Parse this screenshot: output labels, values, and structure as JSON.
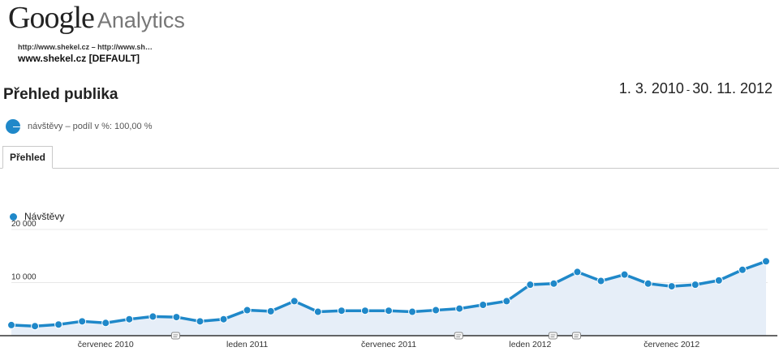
{
  "header": {
    "logo_google": "Google",
    "logo_product": "Analytics",
    "profile_url": "http://www.shekel.cz – http://www.sh…",
    "profile_name": "www.shekel.cz [DEFAULT]"
  },
  "report": {
    "title": "Přehled publika",
    "date_start": "1. 3. 2010",
    "date_sep": "-",
    "date_end": "30. 11. 2012",
    "segment_label": "návštěvy – podíl v %: 100,00 %"
  },
  "tabs": [
    {
      "label": "Přehled"
    }
  ],
  "colors": {
    "series": "#1f88c9",
    "fill": "#e6eef8"
  },
  "chart_data": {
    "type": "area",
    "legend": "Návštěvy",
    "y_ticks": [
      {
        "value": 10000,
        "label": "10 000"
      },
      {
        "value": 20000,
        "label": "20 000"
      }
    ],
    "ylim": [
      0,
      20000
    ],
    "x_labels": [
      "červenec 2010",
      "leden 2011",
      "červenec 2011",
      "leden 2012",
      "červenec 2012"
    ],
    "x_label_index": [
      4,
      10,
      16,
      22,
      28
    ],
    "annotation_index": [
      7,
      19,
      23,
      24
    ],
    "series": [
      {
        "name": "Návštěvy",
        "values": [
          2000,
          1800,
          2100,
          2700,
          2400,
          3100,
          3600,
          3500,
          2700,
          3100,
          4800,
          4600,
          6500,
          4500,
          4700,
          4700,
          4700,
          4500,
          4800,
          5100,
          5800,
          6500,
          9600,
          9800,
          12000,
          10300,
          11500,
          9800,
          9300,
          9600,
          10400,
          12400,
          14000
        ]
      }
    ]
  }
}
